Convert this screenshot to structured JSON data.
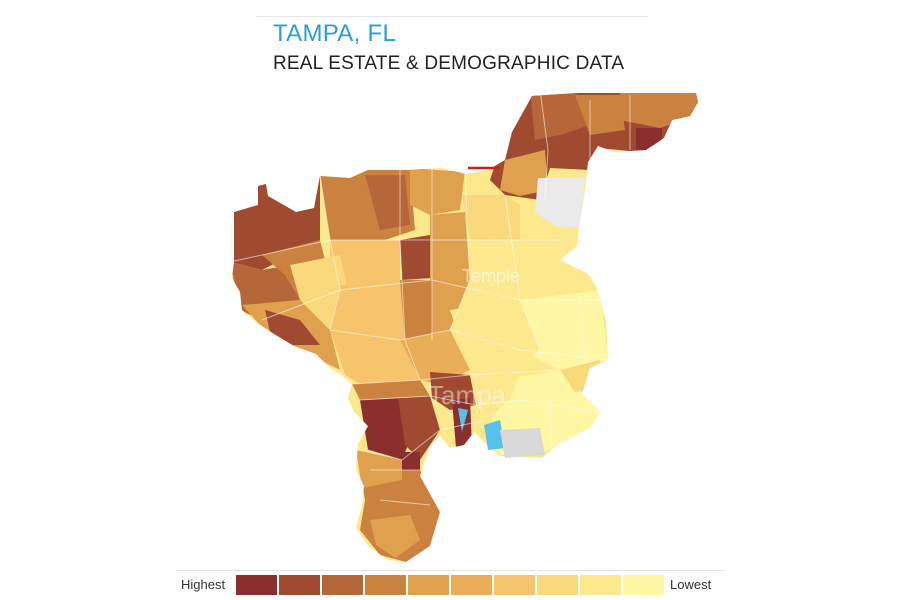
{
  "header": {
    "city": "TAMPA, FL",
    "subtitle": "REAL ESTATE & DEMOGRAPHIC DATA",
    "city_color": "#2a9fd6"
  },
  "map": {
    "labels": [
      "Temple",
      "Tampa"
    ],
    "water_color": "#56c2ea",
    "shoreline_color": "#d9d9d9"
  },
  "legend": {
    "high_label": "Highest",
    "low_label": "Lowest",
    "colors": [
      "#8b2e2e",
      "#a04b31",
      "#b6673a",
      "#cb823f",
      "#e0a14e",
      "#eaae58",
      "#f5c46b",
      "#fad97c",
      "#fde88d",
      "#fff7a3"
    ]
  }
}
